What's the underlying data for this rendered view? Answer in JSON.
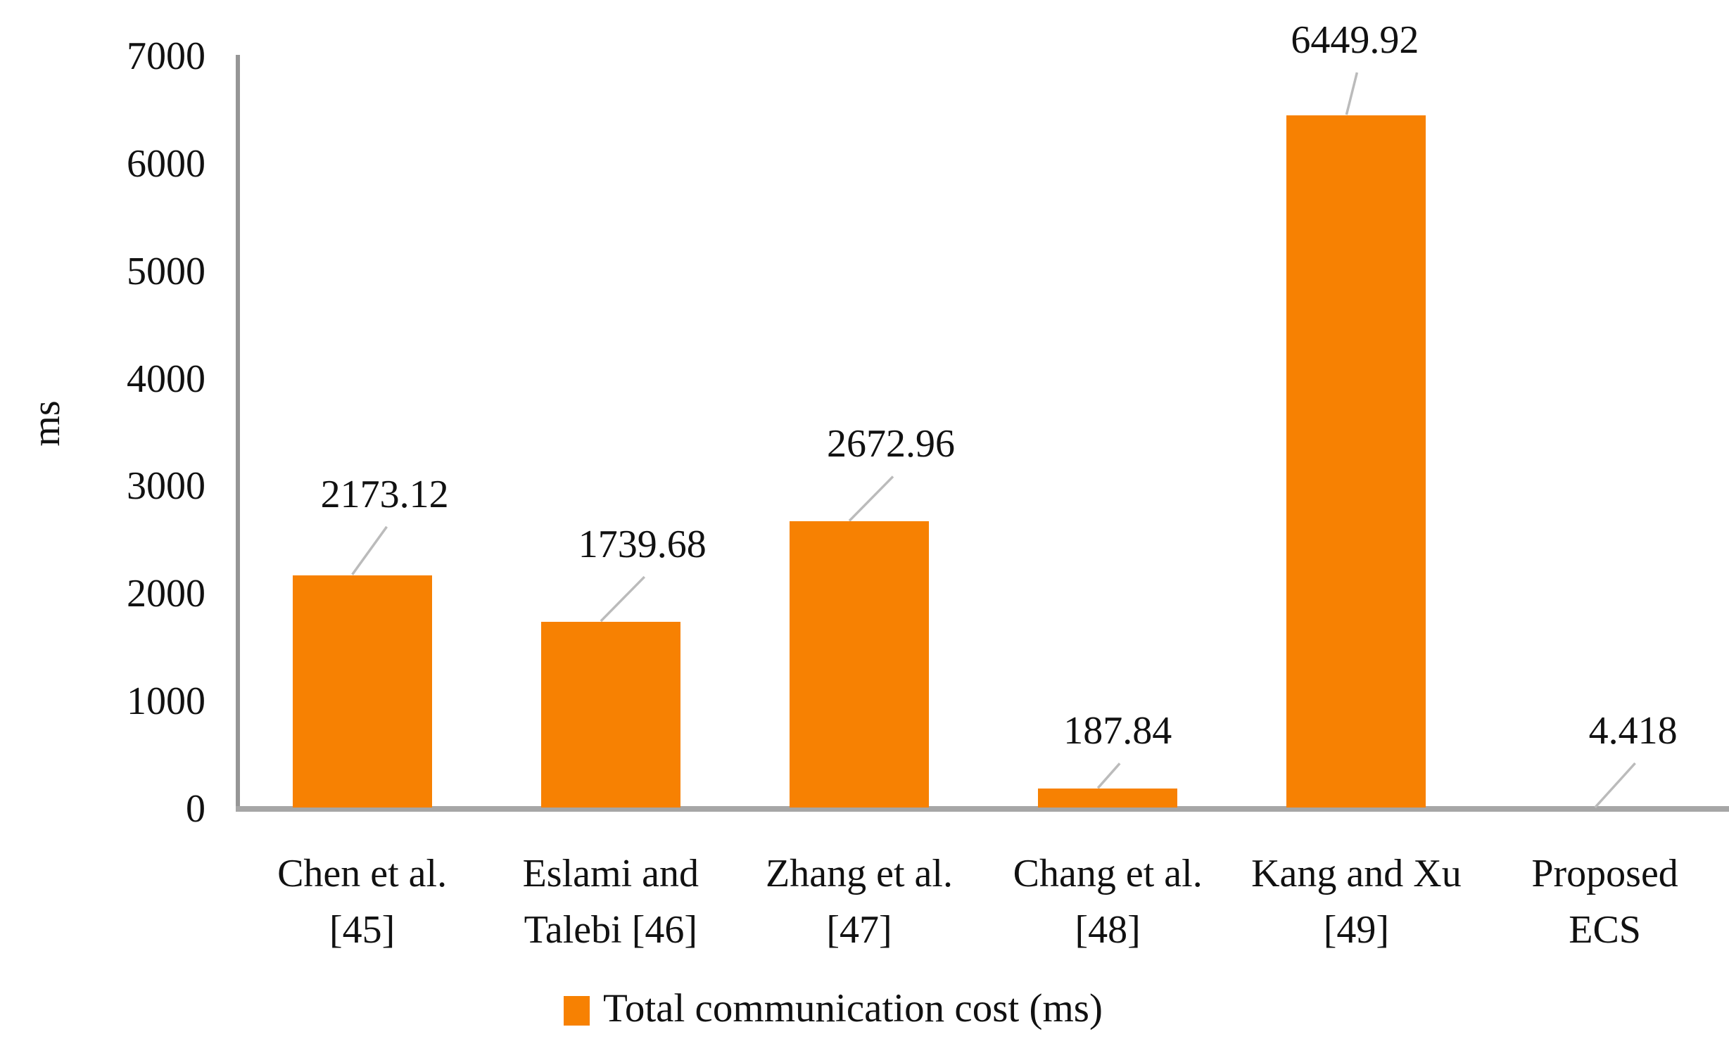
{
  "chart_data": {
    "type": "bar",
    "title": "",
    "ylabel": "ms",
    "xlabel": "",
    "categories": [
      "Chen et al. [45]",
      "Eslami and Talebi [46]",
      "Zhang et al. [47]",
      "Chang et al. [48]",
      "Kang and Xu [49]",
      "Proposed ECS"
    ],
    "category_lines": [
      [
        "Chen et al.",
        "[45]"
      ],
      [
        "Eslami and",
        "Talebi [46]"
      ],
      [
        "Zhang et al.",
        "[47]"
      ],
      [
        "Chang et al.",
        "[48]"
      ],
      [
        "Kang and Xu",
        "[49]"
      ],
      [
        "Proposed",
        "ECS"
      ]
    ],
    "values": [
      2173.12,
      1739.68,
      2672.96,
      187.84,
      6449.92,
      4.418
    ],
    "value_labels": [
      "2173.12",
      "1739.68",
      "2672.96",
      "187.84",
      "6449.92",
      "4.418"
    ],
    "series_name": "Total communication cost (ms)",
    "legend": {
      "position": "bottom",
      "label": "Total communication cost (ms)",
      "swatch_color": "#F78102"
    },
    "ylim": [
      0,
      7000
    ],
    "yticks": [
      0,
      1000,
      2000,
      3000,
      4000,
      5000,
      6000,
      7000
    ],
    "grid": false,
    "bar_color": "#F78102",
    "axis_color": "#969696",
    "baseline_color": "#A6A6A6",
    "leader_line_color": "#BBBBBB",
    "text_color": "#111111"
  }
}
